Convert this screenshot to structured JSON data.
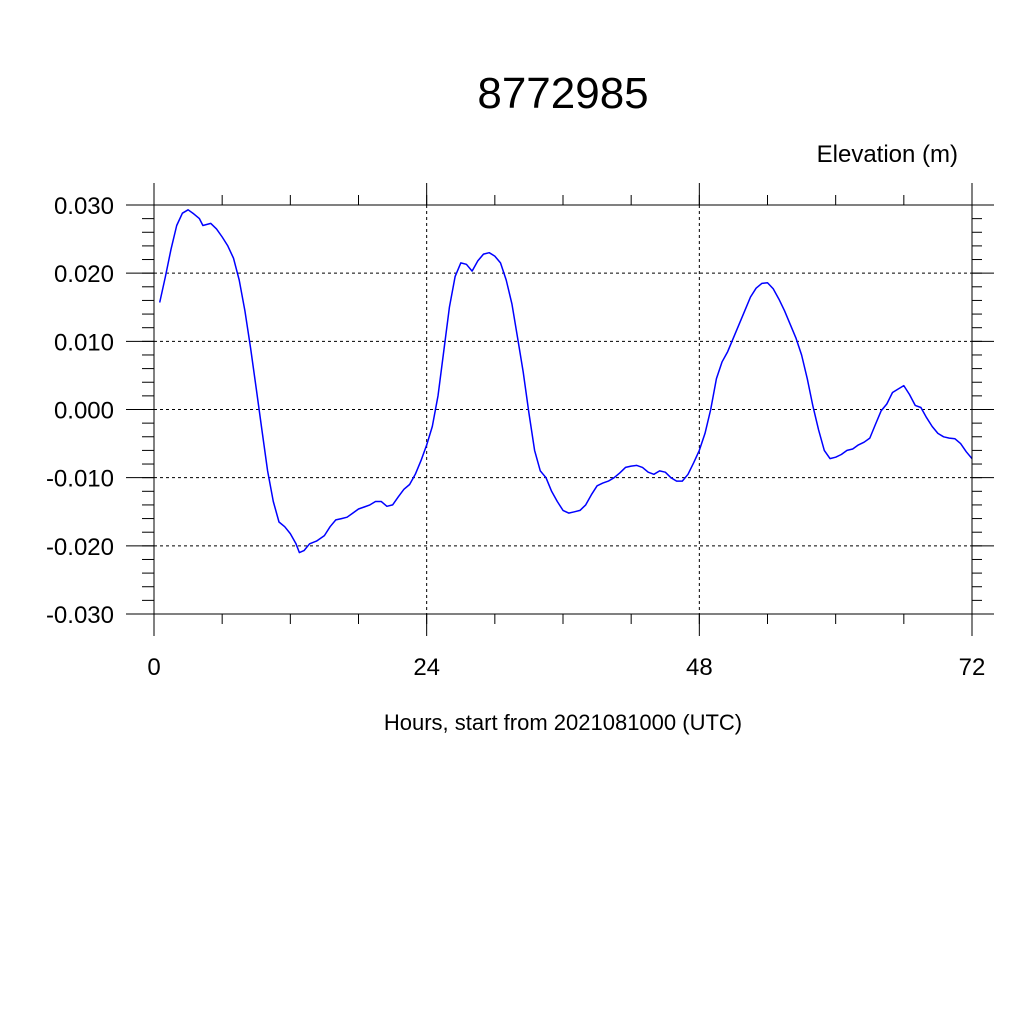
{
  "chart_data": {
    "type": "line",
    "title": "8772985",
    "ylabel": "Elevation (m)",
    "xlabel": "Hours, start from 2021081000 (UTC)",
    "xlim": [
      0,
      72
    ],
    "ylim": [
      -0.03,
      0.03
    ],
    "x_ticks": [
      0,
      24,
      48,
      72
    ],
    "x_tick_labels": [
      "0",
      "24",
      "48",
      "72"
    ],
    "y_ticks": [
      -0.03,
      -0.02,
      -0.01,
      0.0,
      0.01,
      0.02,
      0.03
    ],
    "y_tick_labels": [
      "-0.030",
      "-0.020",
      "-0.010",
      "0.000",
      "0.010",
      "0.020",
      "0.030"
    ],
    "grid": true,
    "colors": {
      "series": "#0000ff",
      "axis": "#000000",
      "grid": "#000000"
    },
    "series": [
      {
        "values": [
          [
            0.5,
            0.0157
          ],
          [
            1.0,
            0.0195
          ],
          [
            1.5,
            0.0235
          ],
          [
            2.0,
            0.027
          ],
          [
            2.5,
            0.0288
          ],
          [
            3.0,
            0.0293
          ],
          [
            3.5,
            0.0287
          ],
          [
            4.0,
            0.028
          ],
          [
            4.3,
            0.027
          ],
          [
            5.0,
            0.0273
          ],
          [
            5.5,
            0.0265
          ],
          [
            6.0,
            0.0253
          ],
          [
            6.5,
            0.024
          ],
          [
            7.0,
            0.0222
          ],
          [
            7.5,
            0.019
          ],
          [
            8.0,
            0.0145
          ],
          [
            8.5,
            0.009
          ],
          [
            9.0,
            0.003
          ],
          [
            9.5,
            -0.003
          ],
          [
            10.0,
            -0.009
          ],
          [
            10.5,
            -0.0135
          ],
          [
            11.0,
            -0.0165
          ],
          [
            11.5,
            -0.0172
          ],
          [
            12.0,
            -0.0182
          ],
          [
            12.5,
            -0.0197
          ],
          [
            12.8,
            -0.021
          ],
          [
            13.2,
            -0.0207
          ],
          [
            13.7,
            -0.0197
          ],
          [
            14.3,
            -0.0193
          ],
          [
            15.0,
            -0.0185
          ],
          [
            15.5,
            -0.0172
          ],
          [
            16.0,
            -0.0162
          ],
          [
            16.5,
            -0.016
          ],
          [
            17.0,
            -0.0158
          ],
          [
            17.5,
            -0.0152
          ],
          [
            18.0,
            -0.0146
          ],
          [
            18.5,
            -0.0143
          ],
          [
            19.0,
            -0.014
          ],
          [
            19.5,
            -0.0135
          ],
          [
            20.0,
            -0.0135
          ],
          [
            20.5,
            -0.0142
          ],
          [
            21.0,
            -0.014
          ],
          [
            21.5,
            -0.0128
          ],
          [
            22.0,
            -0.0117
          ],
          [
            22.5,
            -0.011
          ],
          [
            23.0,
            -0.0095
          ],
          [
            23.5,
            -0.0075
          ],
          [
            24.0,
            -0.0052
          ],
          [
            24.5,
            -0.0025
          ],
          [
            25.0,
            0.002
          ],
          [
            25.5,
            0.0085
          ],
          [
            26.0,
            0.015
          ],
          [
            26.5,
            0.0195
          ],
          [
            27.0,
            0.0215
          ],
          [
            27.5,
            0.0213
          ],
          [
            28.0,
            0.0203
          ],
          [
            28.5,
            0.0218
          ],
          [
            29.0,
            0.0228
          ],
          [
            29.5,
            0.023
          ],
          [
            30.0,
            0.0225
          ],
          [
            30.5,
            0.0215
          ],
          [
            31.0,
            0.019
          ],
          [
            31.5,
            0.0155
          ],
          [
            32.0,
            0.0105
          ],
          [
            32.5,
            0.0055
          ],
          [
            33.0,
            -0.0005
          ],
          [
            33.5,
            -0.006
          ],
          [
            34.0,
            -0.009
          ],
          [
            34.5,
            -0.01
          ],
          [
            35.0,
            -0.012
          ],
          [
            35.5,
            -0.0135
          ],
          [
            36.0,
            -0.0148
          ],
          [
            36.5,
            -0.0152
          ],
          [
            37.0,
            -0.015
          ],
          [
            37.5,
            -0.0148
          ],
          [
            38.0,
            -0.014
          ],
          [
            38.5,
            -0.0125
          ],
          [
            39.0,
            -0.0112
          ],
          [
            39.5,
            -0.0108
          ],
          [
            40.0,
            -0.0105
          ],
          [
            40.5,
            -0.01
          ],
          [
            41.0,
            -0.0093
          ],
          [
            41.5,
            -0.0085
          ],
          [
            42.0,
            -0.0083
          ],
          [
            42.5,
            -0.0082
          ],
          [
            43.0,
            -0.0085
          ],
          [
            43.5,
            -0.0092
          ],
          [
            44.0,
            -0.0095
          ],
          [
            44.5,
            -0.009
          ],
          [
            45.0,
            -0.0092
          ],
          [
            45.5,
            -0.01
          ],
          [
            46.0,
            -0.0105
          ],
          [
            46.5,
            -0.0105
          ],
          [
            47.0,
            -0.0095
          ],
          [
            47.5,
            -0.0078
          ],
          [
            48.0,
            -0.006
          ],
          [
            48.5,
            -0.0035
          ],
          [
            49.0,
            0.0
          ],
          [
            49.5,
            0.0045
          ],
          [
            50.0,
            0.007
          ],
          [
            50.5,
            0.0085
          ],
          [
            51.0,
            0.0105
          ],
          [
            51.5,
            0.0125
          ],
          [
            52.0,
            0.0145
          ],
          [
            52.5,
            0.0165
          ],
          [
            53.0,
            0.0178
          ],
          [
            53.5,
            0.0185
          ],
          [
            54.0,
            0.0186
          ],
          [
            54.5,
            0.0177
          ],
          [
            55.0,
            0.0162
          ],
          [
            55.5,
            0.0145
          ],
          [
            56.0,
            0.0125
          ],
          [
            56.5,
            0.0105
          ],
          [
            57.0,
            0.008
          ],
          [
            57.5,
            0.0045
          ],
          [
            58.0,
            0.0005
          ],
          [
            58.5,
            -0.003
          ],
          [
            59.0,
            -0.006
          ],
          [
            59.5,
            -0.0072
          ],
          [
            60.0,
            -0.007
          ],
          [
            60.5,
            -0.0066
          ],
          [
            61.0,
            -0.006
          ],
          [
            61.5,
            -0.0058
          ],
          [
            62.0,
            -0.0052
          ],
          [
            62.5,
            -0.0048
          ],
          [
            63.0,
            -0.0042
          ],
          [
            63.5,
            -0.0022
          ],
          [
            64.0,
            -0.0002
          ],
          [
            64.5,
            0.0008
          ],
          [
            65.0,
            0.0025
          ],
          [
            65.5,
            0.003
          ],
          [
            66.0,
            0.0035
          ],
          [
            66.5,
            0.0022
          ],
          [
            67.0,
            0.0006
          ],
          [
            67.5,
            0.0003
          ],
          [
            68.0,
            -0.0012
          ],
          [
            68.5,
            -0.0025
          ],
          [
            69.0,
            -0.0035
          ],
          [
            69.5,
            -0.004
          ],
          [
            70.0,
            -0.0042
          ],
          [
            70.5,
            -0.0043
          ],
          [
            71.0,
            -0.005
          ],
          [
            71.5,
            -0.0062
          ],
          [
            72.0,
            -0.0072
          ]
        ]
      }
    ]
  }
}
